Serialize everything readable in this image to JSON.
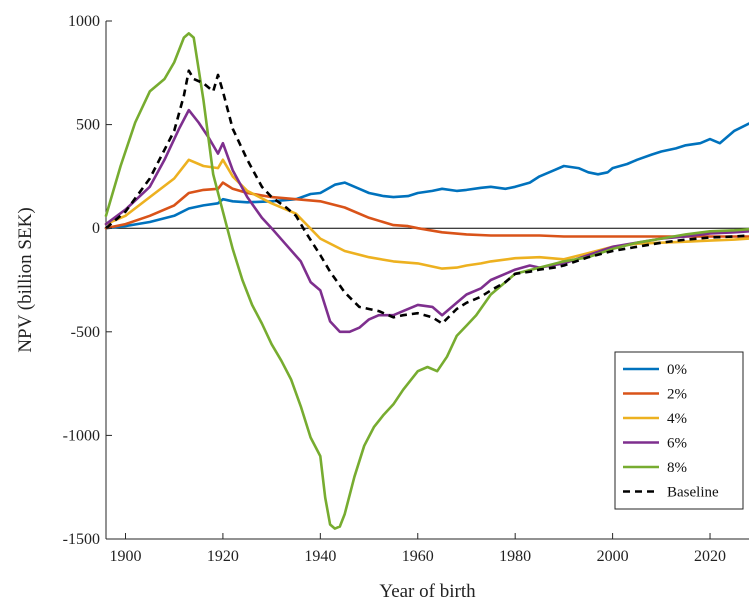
{
  "chart_data": {
    "type": "line",
    "title": "",
    "xlabel": "Year of birth",
    "ylabel": "NPV (billion SEK)",
    "xlim": [
      1896,
      2028
    ],
    "ylim": [
      -1500,
      1000
    ],
    "xticks": [
      1900,
      1920,
      1940,
      1960,
      1980,
      2000,
      2020
    ],
    "yticks": [
      -1500,
      -1000,
      -500,
      0,
      500,
      1000
    ],
    "grid": false,
    "zero_line": true,
    "legend_position": "bottom-right",
    "series": [
      {
        "name": "0%",
        "color": "#0072BD",
        "dash": "solid",
        "x": [
          1896,
          1900,
          1905,
          1910,
          1913,
          1916,
          1919,
          1920,
          1922,
          1925,
          1930,
          1935,
          1938,
          1940,
          1943,
          1945,
          1948,
          1950,
          1953,
          1955,
          1958,
          1960,
          1963,
          1965,
          1968,
          1970,
          1973,
          1975,
          1978,
          1980,
          1983,
          1985,
          1988,
          1990,
          1993,
          1995,
          1997,
          1999,
          2000,
          2003,
          2005,
          2008,
          2010,
          2013,
          2015,
          2018,
          2020,
          2022,
          2025,
          2028
        ],
        "y": [
          0,
          10,
          30,
          60,
          95,
          110,
          120,
          140,
          130,
          125,
          130,
          140,
          165,
          170,
          210,
          220,
          190,
          170,
          155,
          150,
          155,
          170,
          180,
          190,
          180,
          185,
          195,
          200,
          190,
          200,
          220,
          250,
          280,
          300,
          290,
          270,
          260,
          270,
          290,
          310,
          330,
          355,
          370,
          385,
          400,
          410,
          430,
          410,
          470,
          505
        ]
      },
      {
        "name": "2%",
        "color": "#D95319",
        "dash": "solid",
        "x": [
          1896,
          1900,
          1905,
          1910,
          1913,
          1916,
          1919,
          1920,
          1922,
          1925,
          1930,
          1935,
          1940,
          1945,
          1950,
          1955,
          1958,
          1960,
          1965,
          1970,
          1975,
          1980,
          1985,
          1990,
          1995,
          2000,
          2005,
          2010,
          2015,
          2020,
          2025,
          2028
        ],
        "y": [
          0,
          20,
          60,
          110,
          170,
          185,
          190,
          220,
          190,
          170,
          150,
          140,
          130,
          100,
          50,
          15,
          10,
          0,
          -20,
          -30,
          -35,
          -35,
          -35,
          -40,
          -40,
          -40,
          -40,
          -40,
          -40,
          -40,
          -40,
          -40
        ]
      },
      {
        "name": "4%",
        "color": "#EDB120",
        "dash": "solid",
        "x": [
          1896,
          1900,
          1905,
          1910,
          1913,
          1916,
          1919,
          1920,
          1922,
          1925,
          1930,
          1935,
          1940,
          1945,
          1950,
          1955,
          1960,
          1965,
          1968,
          1970,
          1973,
          1975,
          1980,
          1985,
          1990,
          1995,
          2000,
          2005,
          2010,
          2015,
          2020,
          2025,
          2028
        ],
        "y": [
          20,
          60,
          150,
          240,
          330,
          300,
          290,
          330,
          250,
          180,
          120,
          70,
          -50,
          -110,
          -140,
          -160,
          -170,
          -195,
          -190,
          -180,
          -170,
          -160,
          -145,
          -140,
          -150,
          -120,
          -90,
          -75,
          -70,
          -65,
          -60,
          -55,
          -50
        ]
      },
      {
        "name": "6%",
        "color": "#7E2F8E",
        "dash": "solid",
        "x": [
          1896,
          1900,
          1905,
          1908,
          1911,
          1913,
          1915,
          1917,
          1919,
          1920,
          1922,
          1925,
          1928,
          1930,
          1933,
          1936,
          1938,
          1940,
          1942,
          1944,
          1946,
          1948,
          1950,
          1952,
          1955,
          1957,
          1960,
          1963,
          1965,
          1968,
          1970,
          1973,
          1975,
          1978,
          1980,
          1983,
          1985,
          1990,
          1995,
          2000,
          2005,
          2010,
          2015,
          2020,
          2025,
          2028
        ],
        "y": [
          20,
          90,
          200,
          330,
          480,
          570,
          510,
          440,
          360,
          410,
          280,
          150,
          50,
          0,
          -80,
          -160,
          -260,
          -300,
          -450,
          -500,
          -500,
          -480,
          -440,
          -420,
          -420,
          -400,
          -370,
          -380,
          -420,
          -360,
          -320,
          -290,
          -250,
          -220,
          -200,
          -180,
          -190,
          -170,
          -130,
          -90,
          -70,
          -50,
          -40,
          -25,
          -20,
          -15
        ]
      },
      {
        "name": "8%",
        "color": "#77AC30",
        "dash": "solid",
        "x": [
          1896,
          1899,
          1902,
          1905,
          1908,
          1910,
          1912,
          1913,
          1914,
          1916,
          1918,
          1920,
          1922,
          1924,
          1926,
          1928,
          1930,
          1932,
          1934,
          1936,
          1938,
          1940,
          1941,
          1942,
          1943,
          1944,
          1945,
          1947,
          1949,
          1951,
          1953,
          1955,
          1957,
          1960,
          1962,
          1964,
          1966,
          1968,
          1970,
          1972,
          1975,
          1978,
          1980,
          1985,
          1990,
          1995,
          2000,
          2005,
          2010,
          2015,
          2020,
          2025,
          2028
        ],
        "y": [
          60,
          300,
          510,
          660,
          720,
          800,
          920,
          940,
          920,
          620,
          260,
          80,
          -100,
          -250,
          -370,
          -460,
          -560,
          -640,
          -730,
          -860,
          -1010,
          -1100,
          -1300,
          -1430,
          -1450,
          -1440,
          -1380,
          -1200,
          -1050,
          -960,
          -900,
          -850,
          -780,
          -690,
          -670,
          -690,
          -620,
          -520,
          -470,
          -420,
          -320,
          -260,
          -220,
          -190,
          -160,
          -140,
          -100,
          -70,
          -50,
          -30,
          -15,
          -10,
          -5
        ]
      },
      {
        "name": "Baseline",
        "color": "#000000",
        "dash": "dashed",
        "x": [
          1896,
          1900,
          1905,
          1910,
          1912,
          1913,
          1914,
          1916,
          1918,
          1919,
          1920,
          1922,
          1925,
          1928,
          1930,
          1933,
          1935,
          1937,
          1940,
          1942,
          1945,
          1948,
          1950,
          1952,
          1955,
          1957,
          1960,
          1963,
          1965,
          1968,
          1970,
          1973,
          1975,
          1978,
          1980,
          1983,
          1985,
          1988,
          1990,
          1995,
          2000,
          2005,
          2010,
          2015,
          2020,
          2025,
          2028
        ],
        "y": [
          0,
          80,
          240,
          470,
          640,
          760,
          720,
          700,
          660,
          740,
          660,
          480,
          330,
          200,
          150,
          100,
          60,
          -20,
          -130,
          -210,
          -310,
          -380,
          -390,
          -400,
          -430,
          -420,
          -410,
          -430,
          -460,
          -390,
          -360,
          -330,
          -300,
          -260,
          -220,
          -210,
          -200,
          -190,
          -180,
          -140,
          -110,
          -90,
          -70,
          -55,
          -45,
          -40,
          -35
        ]
      }
    ]
  }
}
